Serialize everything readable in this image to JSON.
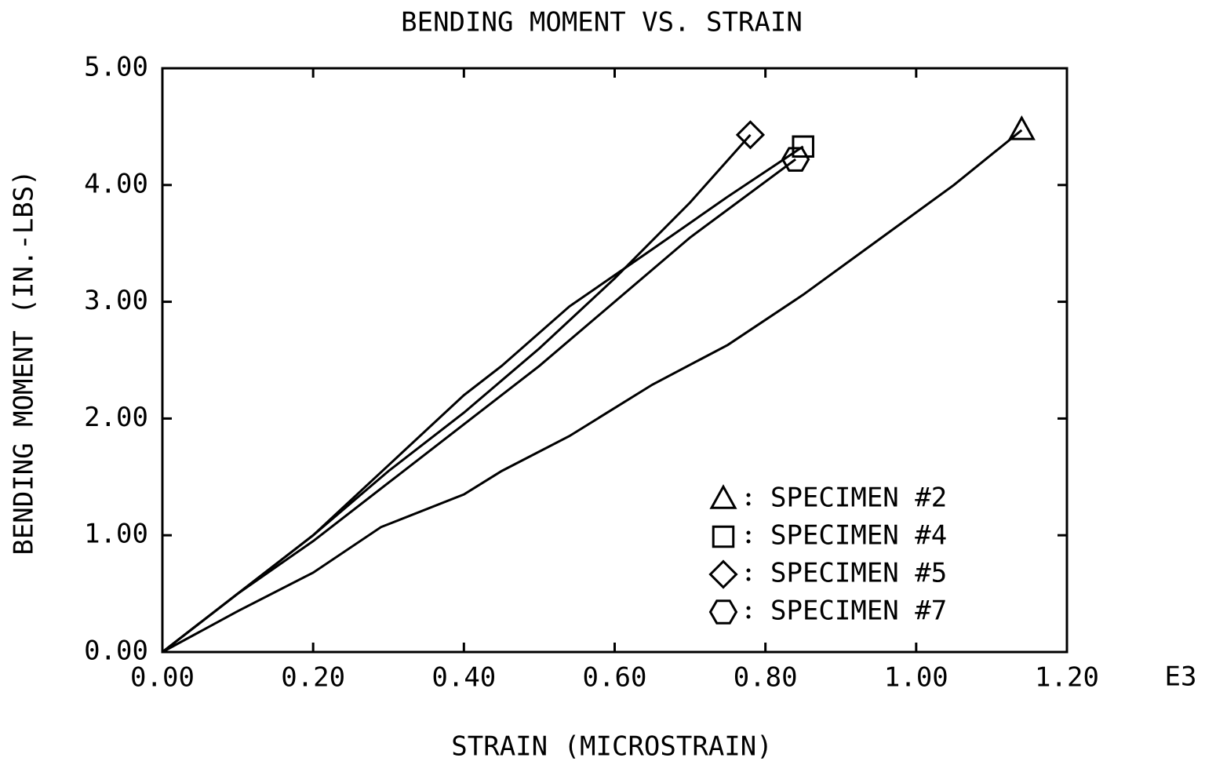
{
  "chart_data": {
    "type": "line",
    "title": "BENDING MOMENT VS. STRAIN",
    "x_label": "STRAIN (MICROSTRAIN)",
    "y_label": "BENDING MOMENT (IN.-LBS)",
    "x_multiplier": "E3",
    "xlim": [
      0,
      1.2
    ],
    "ylim": [
      0,
      5
    ],
    "xticks": [
      {
        "value": 0,
        "label": "0.00"
      },
      {
        "value": 0.2,
        "label": "0.20"
      },
      {
        "value": 0.4,
        "label": "0.40"
      },
      {
        "value": 0.6,
        "label": "0.60"
      },
      {
        "value": 0.8,
        "label": "0.80"
      },
      {
        "value": 1,
        "label": "1.00"
      },
      {
        "value": 1.2,
        "label": "1.20"
      }
    ],
    "yticks": [
      {
        "value": 0,
        "label": "0.00"
      },
      {
        "value": 1,
        "label": "1.00"
      },
      {
        "value": 2,
        "label": "2.00"
      },
      {
        "value": 3,
        "label": "3.00"
      },
      {
        "value": 4,
        "label": "4.00"
      },
      {
        "value": 5,
        "label": "5.00"
      }
    ],
    "grid": false,
    "legend": "lower right",
    "series": [
      {
        "name": "SPECIMEN #2",
        "color": "#000000",
        "marker": "triangle",
        "x": [
          0,
          0.1,
          0.2,
          0.29,
          0.4,
          0.45,
          0.54,
          0.65,
          0.75,
          0.85,
          0.95,
          1.05,
          1.14
        ],
        "values": [
          0,
          0.35,
          0.68,
          1.07,
          1.35,
          1.55,
          1.85,
          2.29,
          2.63,
          3.06,
          3.53,
          4.0,
          4.47
        ]
      },
      {
        "name": "SPECIMEN #4",
        "color": "#000000",
        "marker": "square",
        "x": [
          0,
          0.1,
          0.2,
          0.3,
          0.4,
          0.45,
          0.54,
          0.65,
          0.75,
          0.85
        ],
        "values": [
          0,
          0.5,
          1.0,
          1.6,
          2.2,
          2.45,
          2.96,
          3.45,
          3.9,
          4.33
        ]
      },
      {
        "name": "SPECIMEN #5",
        "color": "#000000",
        "marker": "diamond",
        "x": [
          0,
          0.1,
          0.2,
          0.3,
          0.4,
          0.5,
          0.6,
          0.7,
          0.78
        ],
        "values": [
          0,
          0.5,
          1.0,
          1.55,
          2.05,
          2.6,
          3.2,
          3.85,
          4.43
        ]
      },
      {
        "name": "SPECIMEN #7",
        "color": "#000000",
        "marker": "hexagon",
        "x": [
          0,
          0.1,
          0.2,
          0.3,
          0.4,
          0.5,
          0.6,
          0.7,
          0.84
        ],
        "values": [
          0,
          0.5,
          0.95,
          1.45,
          1.95,
          2.45,
          3.0,
          3.55,
          4.22
        ]
      }
    ]
  }
}
